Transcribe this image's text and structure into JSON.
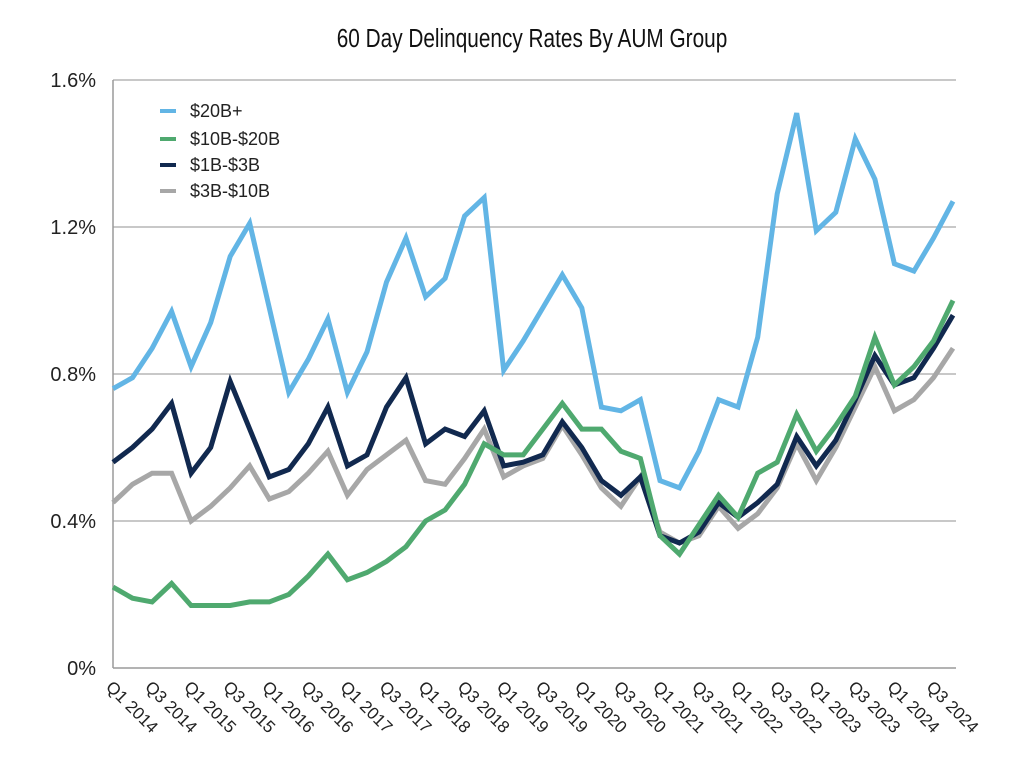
{
  "chart_data": {
    "type": "line",
    "title": "60 Day Delinquency Rates By AUM Group",
    "xlabel": "",
    "ylabel": "",
    "ylim": [
      0,
      1.6
    ],
    "y_ticks": [
      0,
      0.4,
      0.8,
      1.2,
      1.6
    ],
    "y_tick_labels": [
      "0%",
      "0.4%",
      "0.8%",
      "1.2%",
      "1.6%"
    ],
    "grid": "horizontal",
    "legend_position": "top-left",
    "categories": [
      "Q1 2014",
      "Q2 2014",
      "Q3 2014",
      "Q4 2014",
      "Q1 2015",
      "Q2 2015",
      "Q3 2015",
      "Q4 2015",
      "Q1 2016",
      "Q2 2016",
      "Q3 2016",
      "Q4 2016",
      "Q1 2017",
      "Q2 2017",
      "Q3 2017",
      "Q4 2017",
      "Q1 2018",
      "Q2 2018",
      "Q3 2018",
      "Q4 2018",
      "Q1 2019",
      "Q2 2019",
      "Q3 2019",
      "Q4 2019",
      "Q1 2020",
      "Q2 2020",
      "Q3 2020",
      "Q4 2020",
      "Q1 2021",
      "Q2 2021",
      "Q3 2021",
      "Q4 2021",
      "Q1 2022",
      "Q2 2022",
      "Q3 2022",
      "Q4 2022",
      "Q1 2023",
      "Q2 2023",
      "Q3 2023",
      "Q4 2023",
      "Q1 2024",
      "Q2 2024",
      "Q3 2024",
      "Q4 2024"
    ],
    "x_tick_labels": [
      "Q1 2014",
      "Q3 2014",
      "Q1 2015",
      "Q3 2015",
      "Q1 2016",
      "Q3 2016",
      "Q1 2017",
      "Q3 2017",
      "Q1 2018",
      "Q3 2018",
      "Q1 2019",
      "Q3 2019",
      "Q1 2020",
      "Q3 2020",
      "Q1 2021",
      "Q3 2021",
      "Q1 2022",
      "Q3 2022",
      "Q1 2023",
      "Q3 2023",
      "Q1 2024",
      "Q3 2024"
    ],
    "series": [
      {
        "name": "$20B+",
        "color": "#62b5e5",
        "values": [
          0.76,
          0.79,
          0.87,
          0.97,
          0.82,
          0.94,
          1.12,
          1.21,
          0.98,
          0.75,
          0.84,
          0.95,
          0.75,
          0.86,
          1.05,
          1.17,
          1.01,
          1.06,
          1.23,
          1.28,
          0.81,
          0.89,
          0.98,
          1.07,
          0.98,
          0.71,
          0.7,
          0.73,
          0.51,
          0.49,
          0.59,
          0.73,
          0.71,
          0.9,
          1.29,
          1.51,
          1.19,
          1.24,
          1.44,
          1.33,
          1.1,
          1.08,
          1.17,
          1.27
        ]
      },
      {
        "name": "$10B-$20B",
        "color": "#4fa96f",
        "values": [
          0.22,
          0.19,
          0.18,
          0.23,
          0.17,
          0.17,
          0.17,
          0.18,
          0.18,
          0.2,
          0.25,
          0.31,
          0.24,
          0.26,
          0.29,
          0.33,
          0.4,
          0.43,
          0.5,
          0.61,
          0.58,
          0.58,
          0.65,
          0.72,
          0.65,
          0.65,
          0.59,
          0.57,
          0.36,
          0.31,
          0.39,
          0.47,
          0.41,
          0.53,
          0.56,
          0.69,
          0.59,
          0.66,
          0.74,
          0.9,
          0.77,
          0.82,
          0.89,
          1.0
        ]
      },
      {
        "name": "$1B-$3B",
        "color": "#11294f",
        "values": [
          0.56,
          0.6,
          0.65,
          0.72,
          0.53,
          0.6,
          0.78,
          0.65,
          0.52,
          0.54,
          0.61,
          0.71,
          0.55,
          0.58,
          0.71,
          0.79,
          0.61,
          0.65,
          0.63,
          0.7,
          0.55,
          0.56,
          0.58,
          0.67,
          0.6,
          0.51,
          0.47,
          0.52,
          0.36,
          0.34,
          0.37,
          0.45,
          0.41,
          0.45,
          0.5,
          0.63,
          0.55,
          0.62,
          0.73,
          0.85,
          0.77,
          0.79,
          0.87,
          0.96
        ]
      },
      {
        "name": "$3B-$10B",
        "color": "#a7a7a7",
        "values": [
          0.45,
          0.5,
          0.53,
          0.53,
          0.4,
          0.44,
          0.49,
          0.55,
          0.46,
          0.48,
          0.53,
          0.59,
          0.47,
          0.54,
          0.58,
          0.62,
          0.51,
          0.5,
          0.57,
          0.65,
          0.52,
          0.55,
          0.57,
          0.66,
          0.58,
          0.49,
          0.44,
          0.52,
          0.37,
          0.34,
          0.36,
          0.44,
          0.38,
          0.42,
          0.49,
          0.61,
          0.51,
          0.6,
          0.71,
          0.82,
          0.7,
          0.73,
          0.79,
          0.87
        ]
      }
    ]
  }
}
